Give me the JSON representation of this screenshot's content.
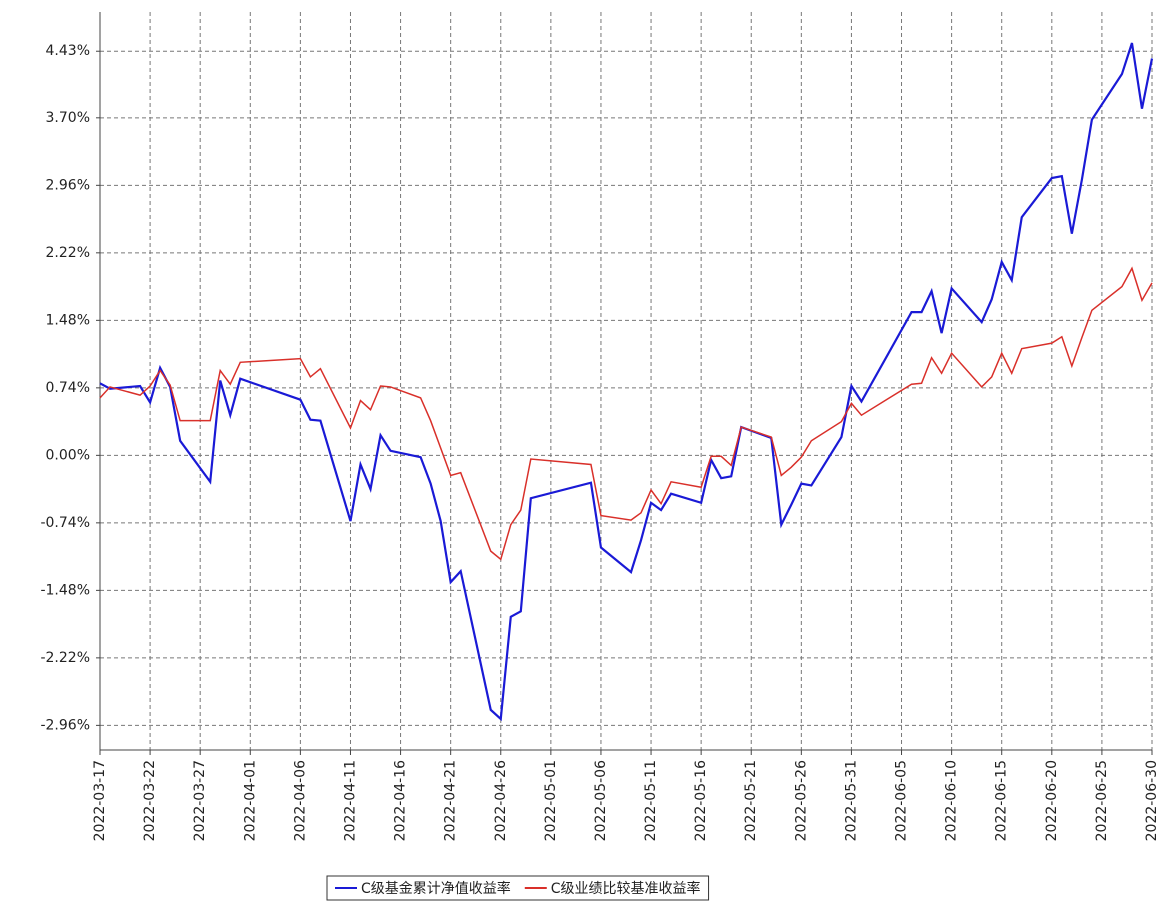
{
  "chart_data": {
    "type": "line",
    "x": [
      "2022-03-17",
      "2022-03-18",
      "2022-03-21",
      "2022-03-22",
      "2022-03-23",
      "2022-03-24",
      "2022-03-25",
      "2022-03-28",
      "2022-03-29",
      "2022-03-30",
      "2022-03-31",
      "2022-04-06",
      "2022-04-07",
      "2022-04-08",
      "2022-04-11",
      "2022-04-12",
      "2022-04-13",
      "2022-04-14",
      "2022-04-15",
      "2022-04-18",
      "2022-04-19",
      "2022-04-20",
      "2022-04-21",
      "2022-04-22",
      "2022-04-25",
      "2022-04-26",
      "2022-04-27",
      "2022-04-28",
      "2022-04-29",
      "2022-05-05",
      "2022-05-06",
      "2022-05-09",
      "2022-05-10",
      "2022-05-11",
      "2022-05-12",
      "2022-05-13",
      "2022-05-16",
      "2022-05-17",
      "2022-05-18",
      "2022-05-19",
      "2022-05-20",
      "2022-05-23",
      "2022-05-24",
      "2022-05-25",
      "2022-05-26",
      "2022-05-27",
      "2022-05-30",
      "2022-05-31",
      "2022-06-01",
      "2022-06-06",
      "2022-06-07",
      "2022-06-08",
      "2022-06-09",
      "2022-06-10",
      "2022-06-13",
      "2022-06-14",
      "2022-06-15",
      "2022-06-16",
      "2022-06-17",
      "2022-06-20",
      "2022-06-21",
      "2022-06-22",
      "2022-06-23",
      "2022-06-24",
      "2022-06-27",
      "2022-06-28",
      "2022-06-29",
      "2022-06-30"
    ],
    "series": [
      {
        "name": "C级基金累计净值收益率",
        "color": "#1a1ad6",
        "values": [
          0.79,
          0.73,
          0.76,
          0.58,
          0.96,
          0.75,
          0.16,
          -0.29,
          0.82,
          0.44,
          0.84,
          0.61,
          0.39,
          0.38,
          -0.72,
          -0.1,
          -0.37,
          0.22,
          0.05,
          -0.02,
          -0.31,
          -0.72,
          -1.39,
          -1.27,
          -2.79,
          -2.89,
          -1.77,
          -1.71,
          -0.47,
          -0.3,
          -1.01,
          -1.28,
          -0.93,
          -0.52,
          -0.6,
          -0.42,
          -0.52,
          -0.05,
          -0.25,
          -0.23,
          0.31,
          0.19,
          -0.76,
          -0.54,
          -0.31,
          -0.33,
          0.2,
          0.76,
          0.59,
          1.57,
          1.57,
          1.8,
          1.34,
          1.83,
          1.46,
          1.71,
          2.12,
          1.92,
          2.61,
          3.04,
          3.06,
          2.43,
          3.02,
          3.68,
          4.18,
          4.52,
          3.8,
          4.35
        ]
      },
      {
        "name": "C级业绩比较基准收益率",
        "color": "#d9302a",
        "values": [
          0.63,
          0.75,
          0.66,
          0.76,
          0.93,
          0.77,
          0.38,
          0.38,
          0.93,
          0.78,
          1.02,
          1.06,
          0.86,
          0.95,
          0.3,
          0.6,
          0.5,
          0.76,
          0.75,
          0.63,
          0.38,
          0.08,
          -0.22,
          -0.19,
          -1.05,
          -1.14,
          -0.76,
          -0.6,
          -0.04,
          -0.1,
          -0.66,
          -0.71,
          -0.63,
          -0.38,
          -0.53,
          -0.29,
          -0.35,
          -0.01,
          -0.01,
          -0.11,
          0.31,
          0.2,
          -0.22,
          -0.13,
          -0.02,
          0.16,
          0.37,
          0.57,
          0.44,
          0.78,
          0.79,
          1.07,
          0.9,
          1.12,
          0.75,
          0.86,
          1.12,
          0.9,
          1.17,
          1.23,
          1.3,
          0.98,
          1.29,
          1.59,
          1.85,
          2.05,
          1.7,
          1.89
        ]
      }
    ],
    "xlim": [
      "2022-03-17",
      "2022-06-30"
    ],
    "xticks": [
      "2022-03-17",
      "2022-03-22",
      "2022-03-27",
      "2022-04-01",
      "2022-04-06",
      "2022-04-11",
      "2022-04-16",
      "2022-04-21",
      "2022-04-26",
      "2022-05-01",
      "2022-05-06",
      "2022-05-11",
      "2022-05-16",
      "2022-05-21",
      "2022-05-26",
      "2022-05-31",
      "2022-06-05",
      "2022-06-10",
      "2022-06-15",
      "2022-06-20",
      "2022-06-25",
      "2022-06-30"
    ],
    "ylim": [
      -3.23,
      4.86
    ],
    "yticks": [
      {
        "value": -2.96,
        "label": "-2.96%"
      },
      {
        "value": -2.22,
        "label": "-2.22%"
      },
      {
        "value": -1.48,
        "label": "-1.48%"
      },
      {
        "value": -0.74,
        "label": "-0.74%"
      },
      {
        "value": 0,
        "label": "0.00%"
      },
      {
        "value": 0.74,
        "label": "0.74%"
      },
      {
        "value": 1.48,
        "label": "1.48%"
      },
      {
        "value": 2.22,
        "label": "2.22%"
      },
      {
        "value": 2.96,
        "label": "2.96%"
      },
      {
        "value": 3.7,
        "label": "3.70%"
      },
      {
        "value": 4.43,
        "label": "4.43%"
      }
    ],
    "grid": true,
    "legend": "bottom"
  }
}
